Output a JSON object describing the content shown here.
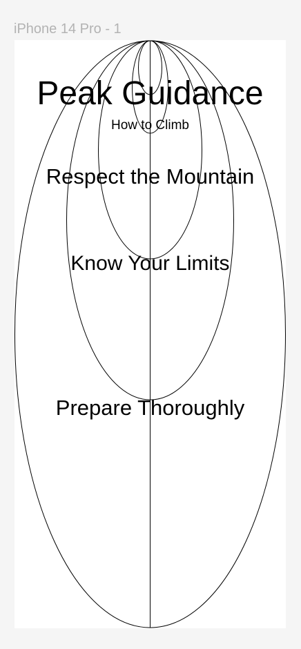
{
  "frame": {
    "label": "iPhone 14 Pro - 1"
  },
  "content": {
    "title": "Peak Guidance",
    "subtitle": "How to Climb",
    "principles": [
      "Respect the Mountain",
      "Know Your Limits",
      "Prepare Thoroughly"
    ]
  },
  "colors": {
    "canvas": "#f5f5f5",
    "frame": "#ffffff",
    "stroke": "#000000",
    "label": "#b3b3b3"
  }
}
